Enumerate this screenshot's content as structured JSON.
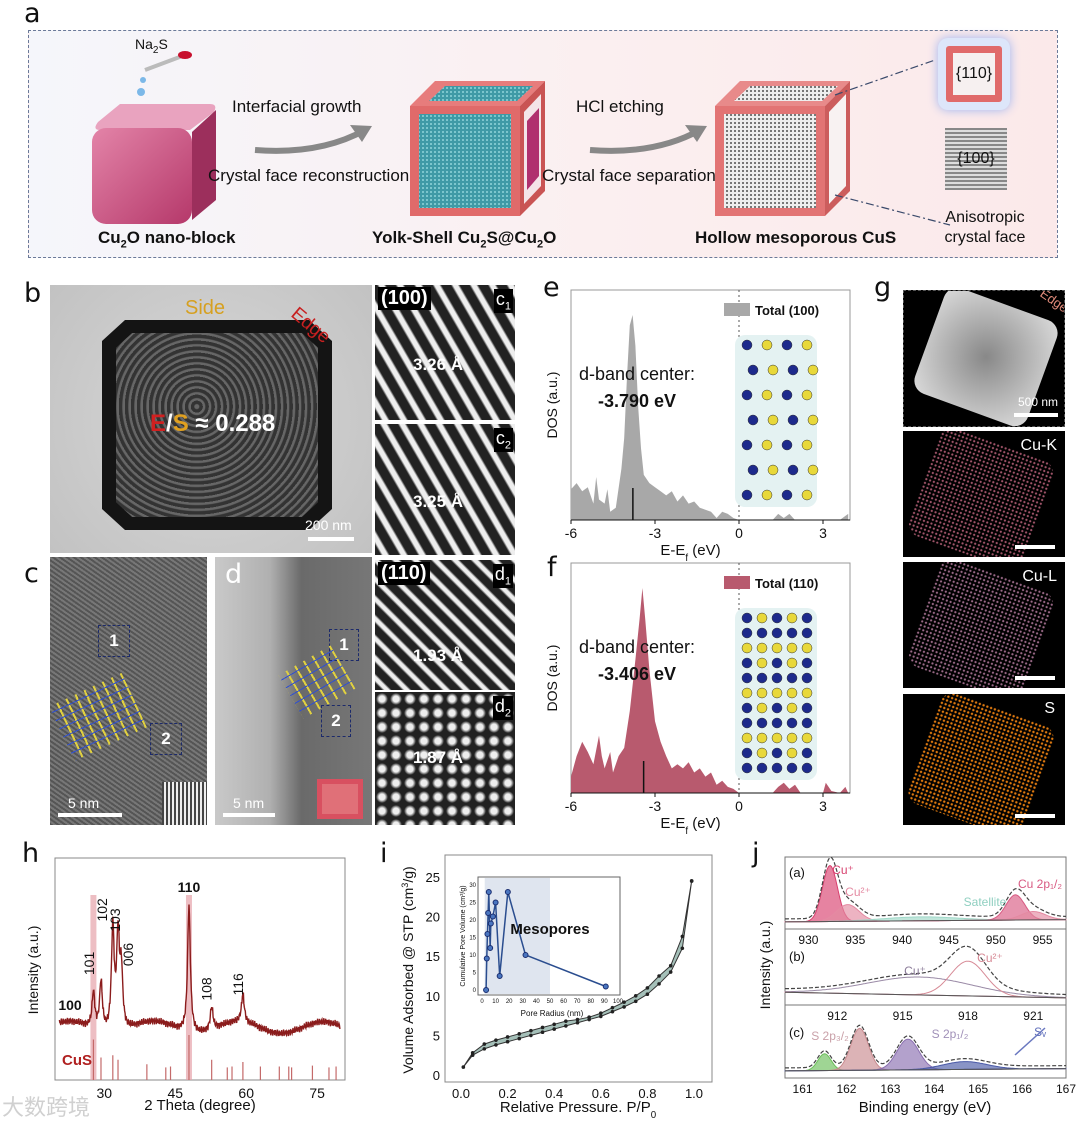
{
  "labels": {
    "a": "a",
    "b": "b",
    "c": "c",
    "d": "d",
    "e": "e",
    "f": "f",
    "g": "g",
    "h": "h",
    "i": "i",
    "j": "j"
  },
  "panel_a": {
    "reagent": "Na",
    "reagent_sub": "2",
    "reagent_end": "S",
    "step1_top": "Interfacial growth",
    "step1_bottom": "Crystal face reconstruction",
    "step2_top": "HCl etching",
    "step2_bottom": "Crystal face separation",
    "label1_a": "Cu",
    "label1_sub": "2",
    "label1_b": "O nano-block",
    "label2_a": "Yolk-Shell Cu",
    "label2_sub1": "2",
    "label2_b": "S@Cu",
    "label2_sub2": "2",
    "label2_c": "O",
    "label3": "Hollow mesoporous CuS",
    "face110": "{110}",
    "face100": "{100}",
    "aniso_line1": "Anisotropic",
    "aniso_line2": "crystal face"
  },
  "panel_b": {
    "side": "Side",
    "edge": "Edge",
    "ratio_E": "E",
    "ratio_slash": "/",
    "ratio_S": "S",
    "ratio_value": "≈ 0.288",
    "scale": "200 nm"
  },
  "panel_c": {
    "box1": "1",
    "box2": "2",
    "scale": "5 nm"
  },
  "panel_d": {
    "box1": "1",
    "box2": "2",
    "scale": "5 nm"
  },
  "hrtem": [
    {
      "facet": "(100)",
      "tag": "c",
      "tag_sub": "1",
      "spacing": "3.26 Å"
    },
    {
      "tag": "c",
      "tag_sub": "2",
      "spacing": "3.25 Å"
    },
    {
      "facet": "(110)",
      "tag": "d",
      "tag_sub": "1",
      "spacing": "1.93 Å"
    },
    {
      "tag": "d",
      "tag_sub": "2",
      "spacing": "1.87 Å"
    }
  ],
  "panel_g": {
    "edge": "Edge",
    "scale": "500 nm",
    "maps": [
      "Cu-K",
      "Cu-L",
      "S"
    ],
    "map_colors": [
      "#c86a84",
      "#c083a8",
      "#e07a10"
    ]
  },
  "watermark": "大数跨境",
  "chart_data": [
    {
      "type": "area",
      "panel": "e",
      "xlabel": "E-E",
      "xlabel_sub": "f",
      "xlabel_unit": " (eV)",
      "ylabel": "DOS (a.u.)",
      "legend": "Total (100)",
      "color": "#a8a8a8",
      "xlim": [
        -6,
        3.9
      ],
      "xtick_labels": [
        "-6",
        "-3",
        "0",
        "3"
      ],
      "xticks": [
        -6,
        -3,
        0,
        3
      ],
      "annotation": "d-band center:",
      "d_band_center_label": "-3.790 eV",
      "d_band_center": -3.79,
      "x": [
        -6,
        -5.8,
        -5.6,
        -5.4,
        -5.2,
        -5.1,
        -5,
        -4.8,
        -4.7,
        -4.6,
        -4.4,
        -4.2,
        -4.1,
        -4,
        -3.9,
        -3.8,
        -3.7,
        -3.6,
        -3.5,
        -3.4,
        -3.2,
        -3,
        -2.8,
        -2.6,
        -2.4,
        -2.2,
        -2,
        -1.8,
        -1.6,
        -1.4,
        -1.2,
        -1,
        -0.8,
        -0.6,
        -0.4,
        -0.2,
        0,
        1.2,
        1.4,
        1.6,
        1.8,
        2,
        3.6,
        3.8,
        3.9
      ],
      "y": [
        15,
        18,
        14,
        16,
        8,
        21,
        10,
        8,
        15,
        4,
        6,
        25,
        40,
        70,
        95,
        100,
        85,
        55,
        35,
        22,
        18,
        16,
        14,
        12,
        14,
        9,
        12,
        8,
        9,
        6,
        5,
        4,
        1,
        4,
        3,
        1,
        0,
        0,
        3,
        1,
        3,
        0,
        0,
        2,
        3
      ]
    },
    {
      "type": "area",
      "panel": "f",
      "xlabel": "E-E",
      "xlabel_sub": "f",
      "xlabel_unit": " (eV)",
      "ylabel": "DOS (a.u.)",
      "legend": "Total (110)",
      "color": "#b85a6e",
      "xlim": [
        -6,
        3.9
      ],
      "xtick_labels": [
        "-6",
        "-3",
        "0",
        "3"
      ],
      "xticks": [
        -6,
        -3,
        0,
        3
      ],
      "annotation": "d-band center:",
      "d_band_center_label": "-3.406 eV",
      "d_band_center": -3.406,
      "x": [
        -6,
        -5.8,
        -5.6,
        -5.4,
        -5.2,
        -5,
        -4.9,
        -4.8,
        -4.6,
        -4.5,
        -4.3,
        -4.1,
        -3.9,
        -3.7,
        -3.55,
        -3.45,
        -3.35,
        -3.2,
        -3,
        -2.8,
        -2.6,
        -2.4,
        -2.2,
        -2,
        -1.8,
        -1.6,
        -1.4,
        -1.2,
        -1,
        -0.8,
        -0.6,
        -0.4,
        -0.2,
        0,
        1.2,
        1.4,
        1.6,
        1.8,
        2,
        2.2,
        3,
        3.1,
        3.3,
        3.6,
        3.8,
        3.9
      ],
      "y": [
        8,
        18,
        25,
        20,
        14,
        28,
        18,
        12,
        20,
        10,
        18,
        22,
        40,
        65,
        85,
        100,
        85,
        60,
        35,
        25,
        18,
        12,
        14,
        12,
        15,
        10,
        12,
        8,
        10,
        4,
        6,
        3,
        2,
        0,
        0,
        3,
        5,
        2,
        4,
        0,
        0,
        5,
        1,
        0,
        3,
        0
      ]
    },
    {
      "type": "line",
      "panel": "h",
      "xlabel": "2 Theta (degree)",
      "ylabel": "Intensity (a.u.)",
      "reference": "CuS",
      "xlim": [
        20,
        80
      ],
      "xtick_labels": [
        "30",
        "45",
        "60",
        "75"
      ],
      "xticks": [
        30,
        45,
        60,
        75
      ],
      "peaks": [
        {
          "pos": 27.7,
          "h": 28,
          "label": "100"
        },
        {
          "pos": 29.3,
          "h": 38,
          "label": "101"
        },
        {
          "pos": 31.8,
          "h": 80,
          "label": "102"
        },
        {
          "pos": 32.9,
          "h": 72,
          "label": "103"
        },
        {
          "pos": 33.6,
          "h": 45,
          "label": "006"
        },
        {
          "pos": 47.9,
          "h": 100,
          "label": "110"
        },
        {
          "pos": 52.7,
          "h": 18,
          "label": "108"
        },
        {
          "pos": 59.3,
          "h": 22,
          "label": "116"
        }
      ],
      "reference_lines": [
        {
          "pos": 27.7,
          "h": 90
        },
        {
          "pos": 29.3,
          "h": 50
        },
        {
          "pos": 31.8,
          "h": 55
        },
        {
          "pos": 32.9,
          "h": 45
        },
        {
          "pos": 39,
          "h": 35
        },
        {
          "pos": 43,
          "h": 28
        },
        {
          "pos": 44,
          "h": 30
        },
        {
          "pos": 47.9,
          "h": 100
        },
        {
          "pos": 52.7,
          "h": 45
        },
        {
          "pos": 56,
          "h": 28
        },
        {
          "pos": 57,
          "h": 30
        },
        {
          "pos": 59.3,
          "h": 40
        },
        {
          "pos": 63,
          "h": 30
        },
        {
          "pos": 67,
          "h": 30
        },
        {
          "pos": 69,
          "h": 30
        },
        {
          "pos": 69.6,
          "h": 28
        },
        {
          "pos": 74,
          "h": 32
        },
        {
          "pos": 77.5,
          "h": 28
        },
        {
          "pos": 79,
          "h": 30
        }
      ],
      "highlight": [
        27.7,
        47.9
      ],
      "color": "#8b1c1c"
    },
    {
      "type": "line",
      "panel": "i",
      "xlabel": "Relative Pressure. P/P",
      "xlabel_sub": "0",
      "ylabel": "Volume Adsorbed @ STP (cm",
      "ylabel_sup": "3",
      "ylabel_end": "/g)",
      "xlim": [
        -0.05,
        1.05
      ],
      "ylim": [
        0,
        27
      ],
      "xtick_labels": [
        "0.0",
        "0.2",
        "0.4",
        "0.6",
        "0.8",
        "1.0"
      ],
      "xticks": [
        0,
        0.2,
        0.4,
        0.6,
        0.8,
        1.0
      ],
      "ytick_labels": [
        "0",
        "5",
        "10",
        "15",
        "20",
        "25"
      ],
      "yticks": [
        0,
        5,
        10,
        15,
        20,
        25
      ],
      "adsorption": {
        "x": [
          0.01,
          0.05,
          0.1,
          0.15,
          0.2,
          0.25,
          0.3,
          0.35,
          0.4,
          0.45,
          0.5,
          0.55,
          0.6,
          0.65,
          0.7,
          0.75,
          0.8,
          0.85,
          0.9,
          0.95,
          0.99
        ],
        "y": [
          1,
          2.5,
          3.3,
          3.8,
          4.2,
          4.6,
          5,
          5.4,
          5.8,
          6.2,
          6.6,
          7,
          7.4,
          8,
          8.6,
          9.3,
          10.2,
          11.5,
          13,
          16,
          24.5
        ]
      },
      "desorption": {
        "x": [
          0.99,
          0.95,
          0.9,
          0.85,
          0.8,
          0.75,
          0.7,
          0.65,
          0.6,
          0.55,
          0.5,
          0.45,
          0.4,
          0.35,
          0.3,
          0.25,
          0.2,
          0.15,
          0.1,
          0.05
        ],
        "y": [
          24.5,
          17.5,
          13.8,
          12.5,
          11,
          10,
          9.2,
          8.5,
          7.8,
          7.3,
          7,
          6.8,
          6.4,
          6,
          5.6,
          5.2,
          4.8,
          4.4,
          3.9,
          2.8
        ]
      },
      "inset": {
        "xlabel": "Pore Radius (nm)",
        "ylabel": "Cumulative Pore Volume (cm³/g)",
        "annotation": "Mesopores",
        "mesopore_range": [
          2,
          50
        ],
        "xtick_labels": [
          "0",
          "10",
          "20",
          "30",
          "40",
          "50",
          "60",
          "70",
          "80",
          "90",
          "100"
        ],
        "xticks": [
          0,
          10,
          20,
          30,
          40,
          50,
          60,
          70,
          80,
          90,
          100
        ],
        "ytick_labels": [
          "0",
          "5",
          "10",
          "15",
          "20",
          "25",
          "30"
        ],
        "yticks": [
          0,
          5,
          10,
          15,
          20,
          25,
          30
        ],
        "x": [
          3,
          3.5,
          4,
          4.5,
          5,
          6,
          6.5,
          8,
          10,
          13,
          19,
          32,
          91
        ],
        "y": [
          0,
          9,
          16,
          22,
          28,
          12,
          19,
          21,
          25,
          4,
          28,
          10,
          1
        ]
      },
      "color": "#8fb0a8"
    },
    {
      "type": "line",
      "panel": "j",
      "xlabel": "Binding energy (eV)",
      "ylabel": "Intensity (a.u.)",
      "subplots": [
        {
          "tag": "(a)",
          "xlim": [
            927.5,
            957.5
          ],
          "xtick_labels": [
            "930",
            "935",
            "940",
            "945",
            "950",
            "955"
          ],
          "xticks": [
            930,
            935,
            940,
            945,
            950,
            955
          ],
          "components": [
            {
              "center": 932.3,
              "sigma": 0.8,
              "amp": 1.0,
              "color": "#d8406e"
            },
            {
              "center": 934.2,
              "sigma": 1.2,
              "amp": 0.3,
              "color": "#e48aa2"
            },
            {
              "center": 942,
              "sigma": 4,
              "amp": 0.07,
              "color": "#9fd8c8"
            },
            {
              "center": 952.1,
              "sigma": 1.0,
              "amp": 0.45,
              "color": "#d85a82"
            },
            {
              "center": 954,
              "sigma": 1.3,
              "amp": 0.15,
              "color": "#e48aa2"
            }
          ],
          "annotations": [
            "Cu⁺",
            "Cu²⁺",
            "Satellite",
            "Cu 2p₁/₂"
          ]
        },
        {
          "tag": "(b)",
          "xlim": [
            909.6,
            922.5
          ],
          "xtick_labels": [
            "912",
            "915",
            "918",
            "921"
          ],
          "xticks": [
            912,
            915,
            918,
            921
          ],
          "components": [
            {
              "center": 915.8,
              "sigma": 2.4,
              "amp": 0.32,
              "color": "#9a8aa6"
            },
            {
              "center": 918,
              "sigma": 0.8,
              "amp": 0.62,
              "color": "#d78a96"
            }
          ],
          "annotations": [
            "Cu⁺",
            "Cu²⁺"
          ]
        },
        {
          "tag": "(c)",
          "xlim": [
            160.6,
            167
          ],
          "xtick_labels": [
            "161",
            "162",
            "163",
            "164",
            "165",
            "166",
            "167"
          ],
          "xticks": [
            161,
            162,
            163,
            164,
            165,
            166,
            167
          ],
          "components": [
            {
              "center": 161.5,
              "sigma": 0.15,
              "amp": 0.3,
              "color": "#6cbf5a"
            },
            {
              "center": 162.3,
              "sigma": 0.2,
              "amp": 0.75,
              "color": "#c98a8f"
            },
            {
              "center": 163.4,
              "sigma": 0.25,
              "amp": 0.55,
              "color": "#8b6fb0"
            },
            {
              "center": 164.7,
              "sigma": 0.5,
              "amp": 0.14,
              "color": "#4a5aa8"
            }
          ],
          "annotations": [
            "S 2p₃/₂",
            "S 2p₁/₂",
            "Sᵥ"
          ]
        }
      ]
    }
  ]
}
